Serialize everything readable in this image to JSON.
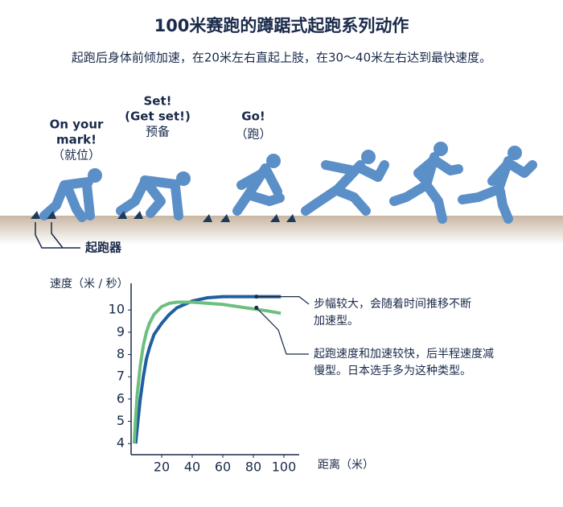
{
  "header": {
    "title": "100米赛跑的蹲踞式起跑系列动作",
    "subtitle": "起跑后身体前倾加速，在20米左右直起上肢，在30～40米左右达到最快速度。"
  },
  "illustration": {
    "labels": [
      {
        "lines": [
          "On your",
          "mark!",
          "（就位）"
        ]
      },
      {
        "lines": [
          "Set!",
          "(Get set!)",
          "预备"
        ]
      },
      {
        "lines": [
          "Go!",
          "（跑）"
        ]
      }
    ],
    "blocks_label": "起跑器"
  },
  "chart_data": {
    "type": "line",
    "y_label": "速度（米 / 秒）",
    "x_label": "距离（米）",
    "x": [
      2,
      3,
      4,
      6,
      8,
      10,
      12,
      15,
      20,
      25,
      30,
      40,
      50,
      60,
      70,
      80,
      90,
      98
    ],
    "series": [
      {
        "color": "#1f5fa0",
        "values": [
          null,
          4.0,
          4.7,
          6.0,
          7.0,
          7.8,
          8.3,
          8.9,
          9.4,
          9.8,
          10.1,
          10.4,
          10.55,
          10.6,
          10.6,
          10.6,
          10.6,
          10.6
        ]
      },
      {
        "color": "#6cbf7e",
        "values": [
          4.0,
          5.2,
          6.2,
          7.5,
          8.4,
          9.0,
          9.4,
          9.8,
          10.15,
          10.3,
          10.35,
          10.35,
          10.3,
          10.25,
          10.15,
          10.05,
          9.95,
          9.85
        ]
      }
    ],
    "annotations": [
      {
        "lines": [
          "步幅较大，会随着时间推移不断",
          "加速型。"
        ],
        "x": 82,
        "y": 10.6
      },
      {
        "lines": [
          "起跑速度和加速较快，后半程速度减",
          "慢型。日本选手多为这种类型。"
        ],
        "x": 82,
        "y": 10.1
      }
    ],
    "xlim": [
      0,
      110
    ],
    "ylim": [
      3.5,
      11.2
    ],
    "xticks": [
      20,
      40,
      60,
      80,
      100
    ],
    "yticks": [
      4,
      5,
      6,
      7,
      8,
      9,
      10
    ]
  }
}
